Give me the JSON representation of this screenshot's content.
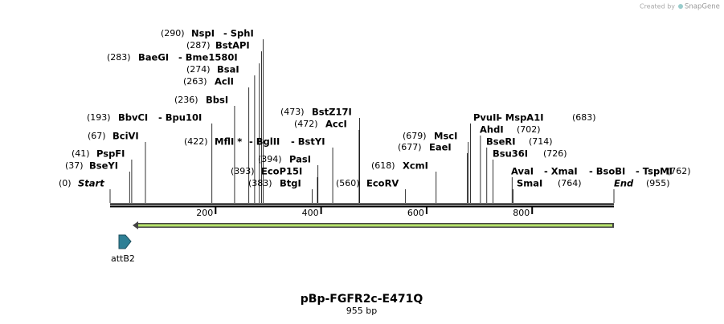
{
  "watermark": {
    "prefix": "Created by",
    "brand": "SnapGene"
  },
  "title": "pBp-FGFR2c-E471Q",
  "subtitle": "955 bp",
  "length": 955,
  "ruler_ticks": [
    200,
    400,
    600,
    800
  ],
  "feature": {
    "label": "attB2"
  },
  "start": {
    "pos": {
      "value": 0,
      "label": "(0)"
    },
    "label": "Start"
  },
  "end": {
    "pos": {
      "value": 955,
      "label": "(955)"
    },
    "label": "End"
  },
  "sites": [
    {
      "pos": {
        "value": 290,
        "label": "(290)"
      },
      "enzymes": [
        "NspI",
        "- SphI"
      ]
    },
    {
      "pos": {
        "value": 287,
        "label": "(287)"
      },
      "enzymes": [
        "BstAPI"
      ]
    },
    {
      "pos": {
        "value": 283,
        "label": "(283)"
      },
      "enzymes": [
        "BaeGI",
        "- Bme1580I"
      ]
    },
    {
      "pos": {
        "value": 274,
        "label": "(274)"
      },
      "enzymes": [
        "BsaI"
      ]
    },
    {
      "pos": {
        "value": 263,
        "label": "(263)"
      },
      "enzymes": [
        "AclI"
      ]
    },
    {
      "pos": {
        "value": 236,
        "label": "(236)"
      },
      "enzymes": [
        "BbsI"
      ]
    },
    {
      "pos": {
        "value": 473,
        "label": "(473)"
      },
      "enzymes": [
        "BstZ17I"
      ]
    },
    {
      "pos": {
        "value": 193,
        "label": "(193)"
      },
      "enzymes": [
        "BbvCI",
        "- Bpu10I"
      ]
    },
    {
      "pos": {
        "value": 472,
        "label": "(472)"
      },
      "enzymes": [
        "AccI"
      ]
    },
    {
      "pos": {
        "value": 683,
        "label": "(683)"
      },
      "enzymes": [
        "PvuII",
        "- MspA1I"
      ]
    },
    {
      "pos": {
        "value": 702,
        "label": "(702)"
      },
      "enzymes": [
        "AhdI"
      ]
    },
    {
      "pos": {
        "value": 67,
        "label": "(67)"
      },
      "enzymes": [
        "BciVI"
      ]
    },
    {
      "pos": {
        "value": 679,
        "label": "(679)"
      },
      "enzymes": [
        "MscI"
      ]
    },
    {
      "pos": {
        "value": 422,
        "label": "(422)"
      },
      "enzymes": [
        "MflI *",
        "- BglII",
        "- BstYI"
      ]
    },
    {
      "pos": {
        "value": 714,
        "label": "(714)"
      },
      "enzymes": [
        "BseRI"
      ]
    },
    {
      "pos": {
        "value": 677,
        "label": "(677)"
      },
      "enzymes": [
        "EaeI"
      ]
    },
    {
      "pos": {
        "value": 41,
        "label": "(41)"
      },
      "enzymes": [
        "PspFI"
      ]
    },
    {
      "pos": {
        "value": 726,
        "label": "(726)"
      },
      "enzymes": [
        "Bsu36I"
      ]
    },
    {
      "pos": {
        "value": 394,
        "label": "(394)"
      },
      "enzymes": [
        "PasI"
      ]
    },
    {
      "pos": {
        "value": 37,
        "label": "(37)"
      },
      "enzymes": [
        "BseYI"
      ]
    },
    {
      "pos": {
        "value": 618,
        "label": "(618)"
      },
      "enzymes": [
        "XcmI"
      ]
    },
    {
      "pos": {
        "value": 393,
        "label": "(393)"
      },
      "enzymes": [
        "EcoP15I"
      ]
    },
    {
      "pos": {
        "value": 762,
        "label": "(762)"
      },
      "enzymes": [
        "AvaI",
        "- XmaI",
        "- BsoBI",
        "- TspMI"
      ]
    },
    {
      "pos": {
        "value": 383,
        "label": "(383)"
      },
      "enzymes": [
        "BtgI"
      ]
    },
    {
      "pos": {
        "value": 560,
        "label": "(560)"
      },
      "enzymes": [
        "EcoRV"
      ]
    },
    {
      "pos": {
        "value": 764,
        "label": "(764)"
      },
      "enzymes": [
        "SmaI"
      ]
    }
  ]
}
